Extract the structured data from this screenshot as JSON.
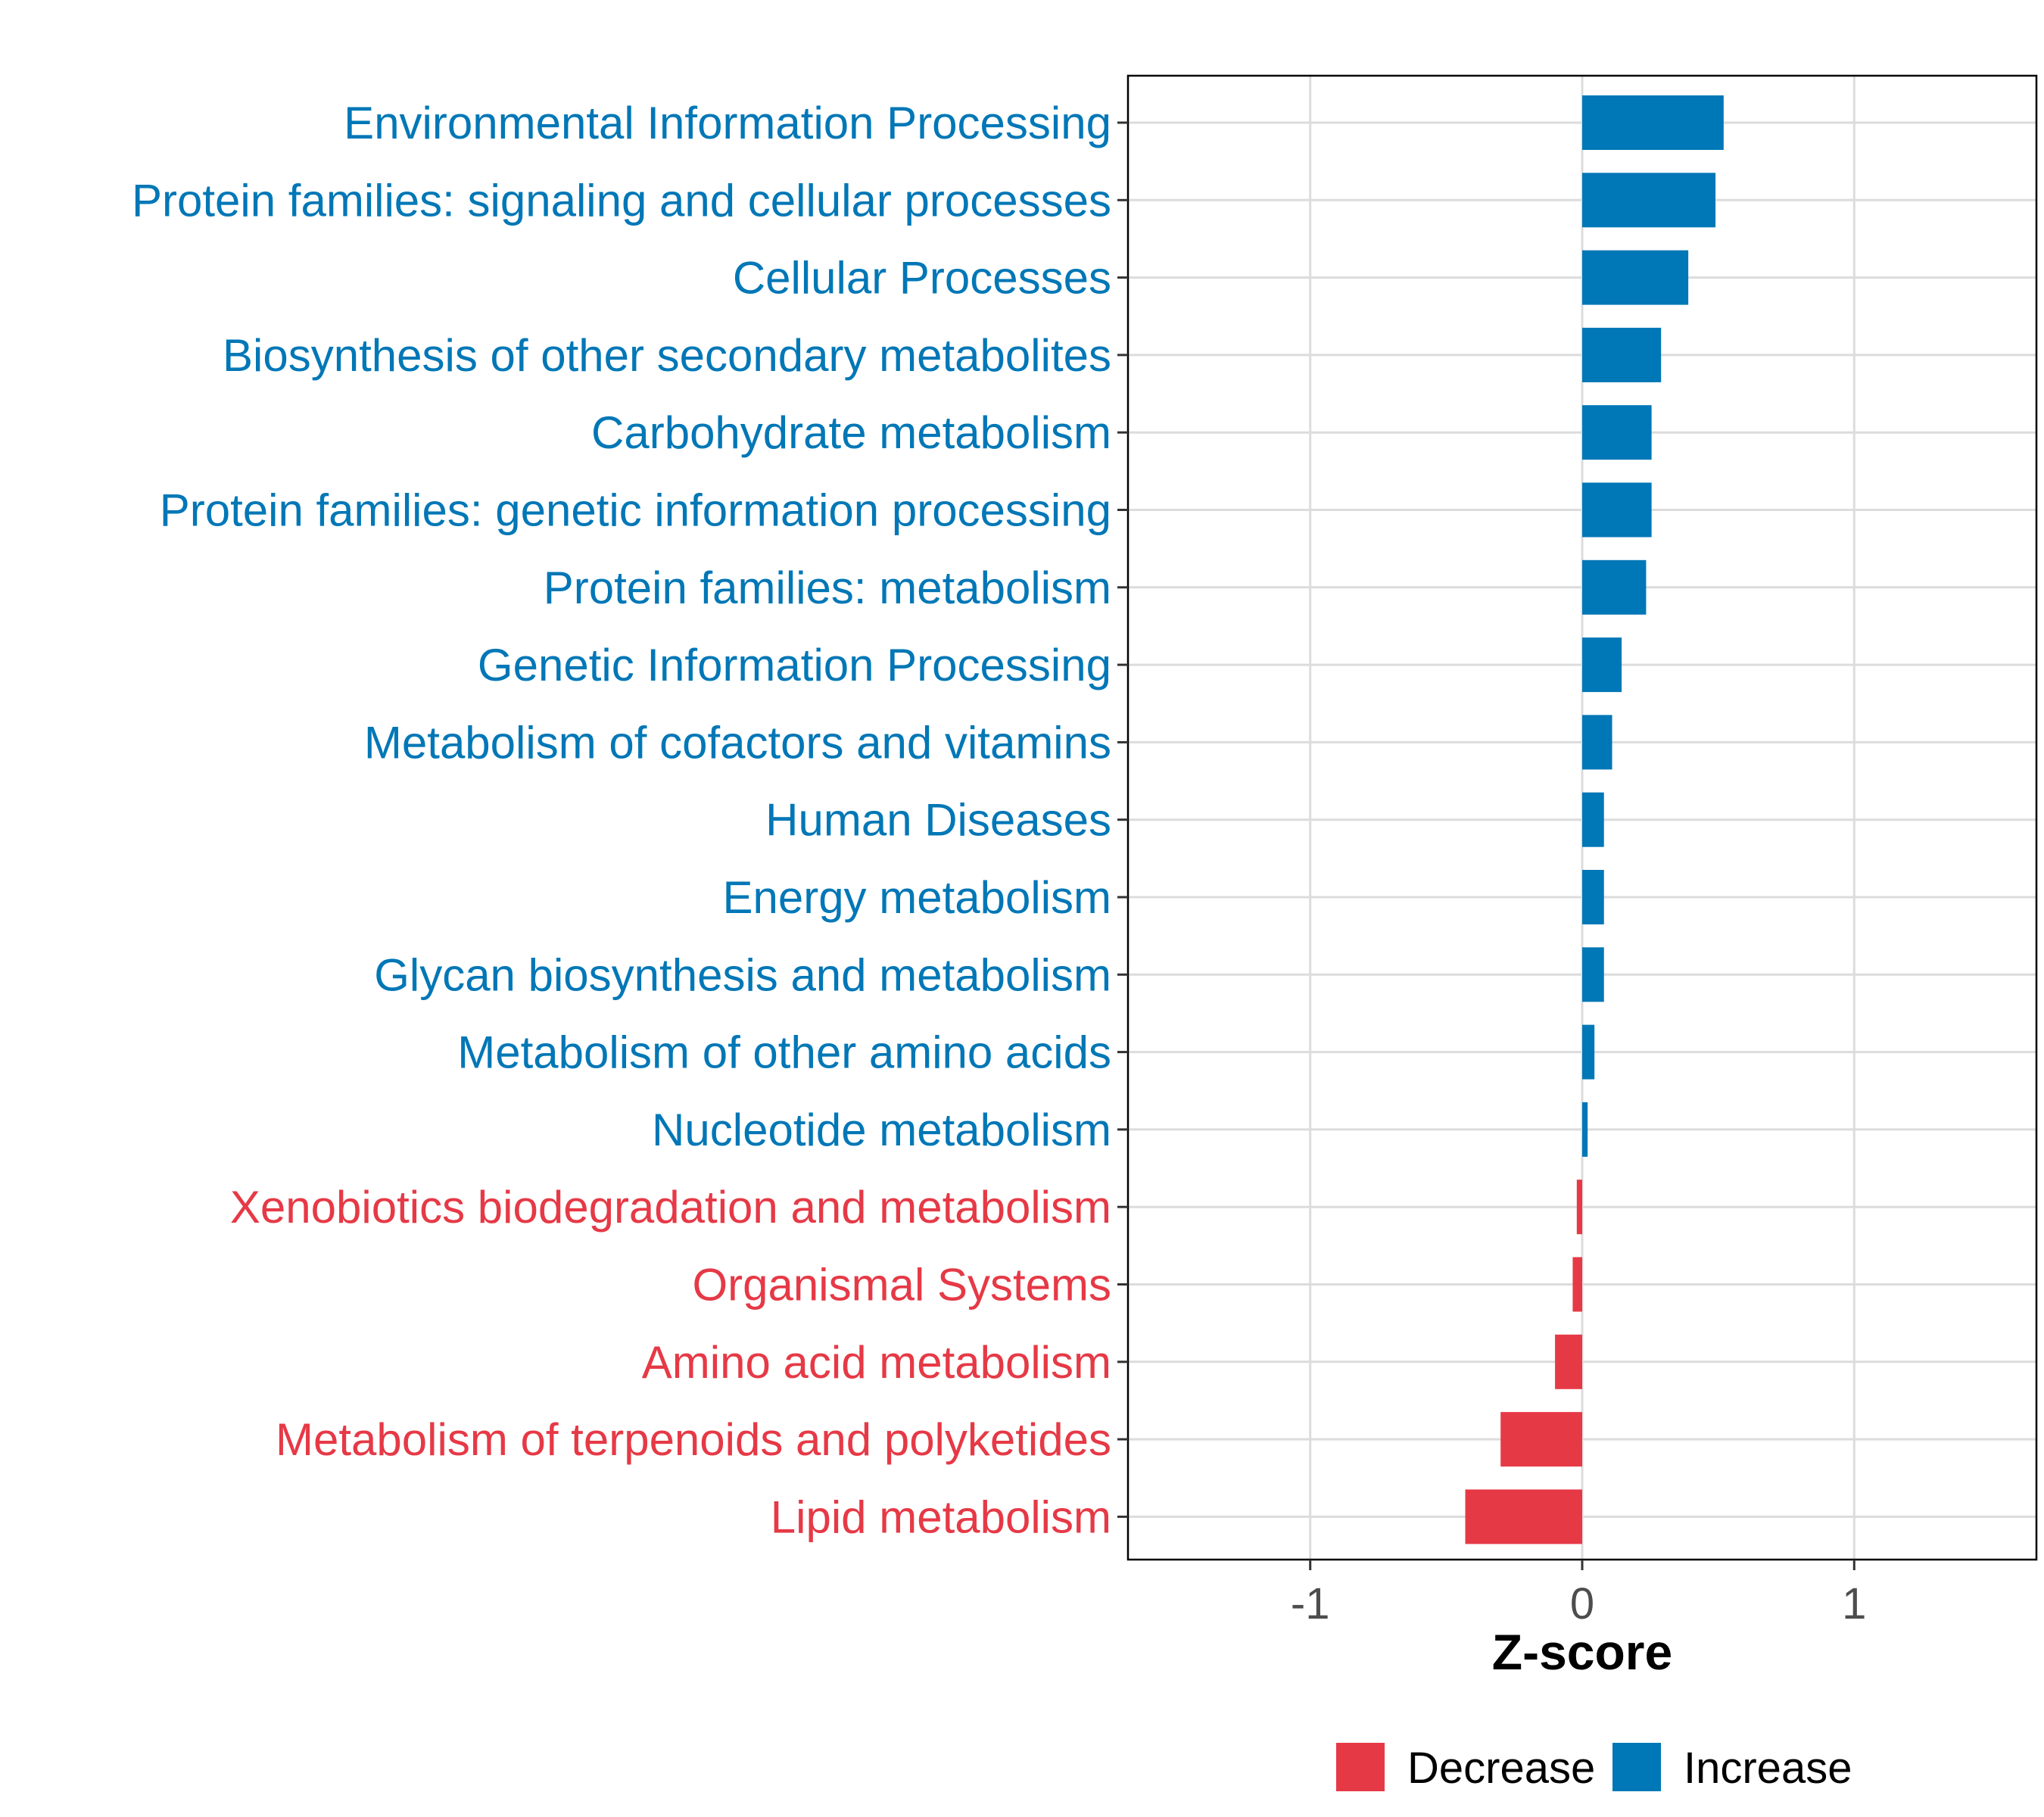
{
  "chart_data": {
    "type": "bar",
    "orientation": "horizontal",
    "title": "",
    "xlabel": "Z-score",
    "ylabel": "",
    "xlim": [
      -1.67,
      1.67
    ],
    "xticks": [
      -1,
      0,
      1
    ],
    "xtick_labels": [
      "-1",
      "0",
      "1"
    ],
    "grid": true,
    "legend_position": "bottom",
    "categories": [
      "Environmental Information Processing",
      "Protein families: signaling and cellular processes",
      "Cellular Processes",
      "Biosynthesis of other secondary metabolites",
      "Carbohydrate metabolism",
      "Protein families: genetic information processing",
      "Protein families: metabolism",
      "Genetic Information Processing",
      "Metabolism of cofactors and vitamins",
      "Human Diseases",
      "Energy metabolism",
      "Glycan biosynthesis and metabolism",
      "Metabolism of other amino acids",
      "Nucleotide metabolism",
      "Xenobiotics biodegradation and metabolism",
      "Organismal Systems",
      "Amino acid metabolism",
      "Metabolism of terpenoids and polyketides",
      "Lipid metabolism"
    ],
    "values": [
      0.52,
      0.49,
      0.39,
      0.29,
      0.255,
      0.255,
      0.235,
      0.145,
      0.11,
      0.08,
      0.08,
      0.08,
      0.045,
      0.02,
      -0.02,
      -0.035,
      -0.1,
      -0.3,
      -0.43
    ],
    "groups": [
      "Increase",
      "Increase",
      "Increase",
      "Increase",
      "Increase",
      "Increase",
      "Increase",
      "Increase",
      "Increase",
      "Increase",
      "Increase",
      "Increase",
      "Increase",
      "Increase",
      "Decrease",
      "Decrease",
      "Decrease",
      "Decrease",
      "Decrease"
    ],
    "legend": [
      {
        "name": "Decrease",
        "color": "#E63946"
      },
      {
        "name": "Increase",
        "color": "#0077B6"
      }
    ]
  }
}
